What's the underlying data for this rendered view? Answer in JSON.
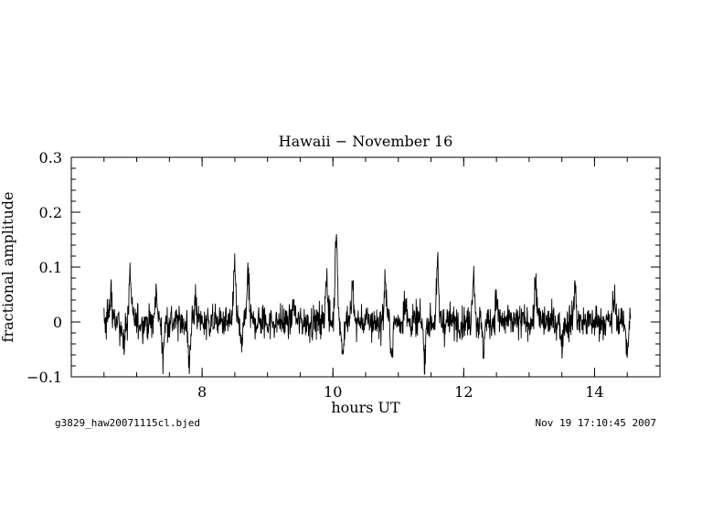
{
  "chart_data": {
    "type": "line",
    "title": "Hawaii − November 16",
    "xlabel": "hours UT",
    "ylabel": "fractional amplitude",
    "xlim": [
      6.0,
      15.0
    ],
    "ylim": [
      -0.1,
      0.3
    ],
    "x_ticks": [
      8,
      10,
      12,
      14
    ],
    "x_tick_labels": [
      "8",
      "10",
      "12",
      "14"
    ],
    "y_ticks": [
      -0.1,
      0,
      0.1,
      0.2,
      0.3
    ],
    "y_tick_labels": [
      "−0.1",
      "0",
      "0.1",
      "0.2",
      "0.3"
    ],
    "x_minor_step": 0.5,
    "y_minor_step": 0.02,
    "grid": false,
    "line_color": "#000000",
    "series": [
      {
        "x_start": 6.5,
        "x_end": 14.55,
        "peaks": [
          {
            "x": 6.6,
            "y": 0.06
          },
          {
            "x": 6.9,
            "y": 0.1
          },
          {
            "x": 7.3,
            "y": 0.07
          },
          {
            "x": 7.9,
            "y": 0.06
          },
          {
            "x": 8.5,
            "y": 0.11
          },
          {
            "x": 8.7,
            "y": 0.1
          },
          {
            "x": 9.4,
            "y": 0.05
          },
          {
            "x": 9.9,
            "y": 0.1
          },
          {
            "x": 10.05,
            "y": 0.19
          },
          {
            "x": 10.3,
            "y": 0.08
          },
          {
            "x": 10.8,
            "y": 0.09
          },
          {
            "x": 11.1,
            "y": 0.06
          },
          {
            "x": 11.6,
            "y": 0.11
          },
          {
            "x": 12.15,
            "y": 0.11
          },
          {
            "x": 12.5,
            "y": 0.06
          },
          {
            "x": 13.1,
            "y": 0.09
          },
          {
            "x": 13.7,
            "y": 0.08
          },
          {
            "x": 14.3,
            "y": 0.06
          }
        ],
        "troughs": [
          {
            "x": 6.8,
            "y": -0.06
          },
          {
            "x": 7.4,
            "y": -0.07
          },
          {
            "x": 7.8,
            "y": -0.09
          },
          {
            "x": 8.6,
            "y": -0.06
          },
          {
            "x": 10.15,
            "y": -0.07
          },
          {
            "x": 10.9,
            "y": -0.07
          },
          {
            "x": 11.4,
            "y": -0.08
          },
          {
            "x": 12.3,
            "y": -0.06
          },
          {
            "x": 13.5,
            "y": -0.05
          },
          {
            "x": 14.5,
            "y": -0.06
          }
        ],
        "noise_sigma": 0.022
      }
    ]
  },
  "footer": {
    "left": "g3829_haw20071115cl.bjed",
    "right": "Nov 19 17:10:45 2007"
  }
}
